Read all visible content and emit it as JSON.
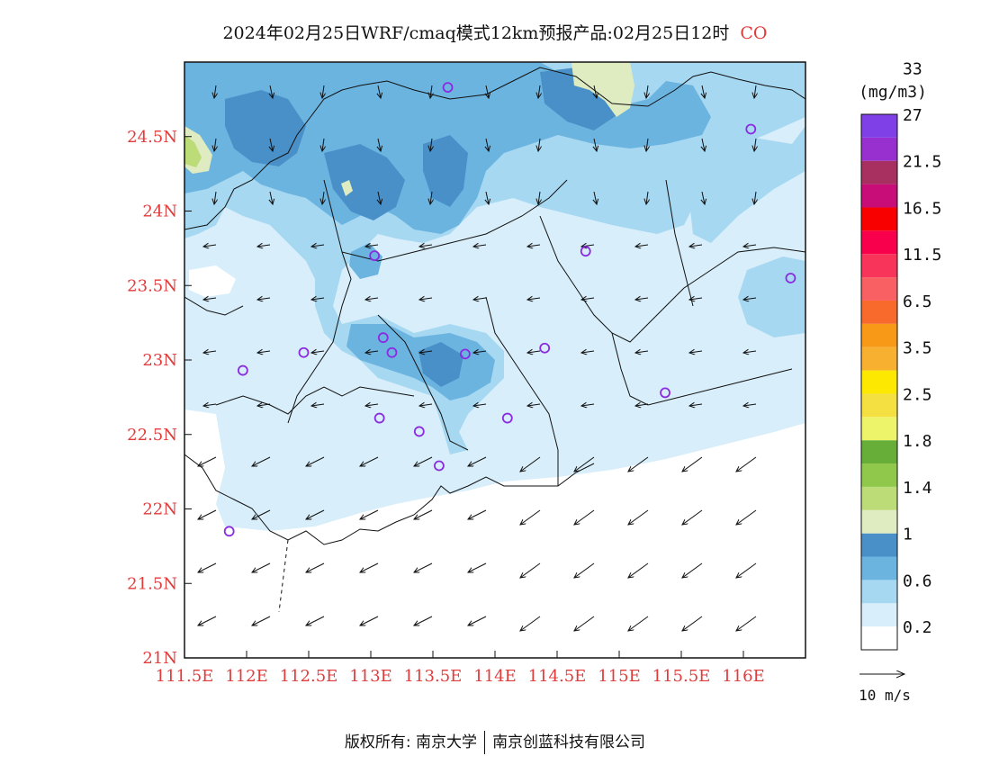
{
  "title": {
    "text": "2024年02月25日WRF/cmaq模式12km预报产品:02月25日12时",
    "pollutant": "CO"
  },
  "map": {
    "lon_range": [
      111.5,
      116.5
    ],
    "lat_range": [
      21.0,
      25.0
    ],
    "x_ticks": [
      "111.5E",
      "112E",
      "112.5E",
      "113E",
      "113.5E",
      "114E",
      "114.5E",
      "115E",
      "115.5E",
      "116E"
    ],
    "y_ticks": [
      "21N",
      "21.5N",
      "22N",
      "22.5N",
      "23N",
      "23.5N",
      "24N",
      "24.5N"
    ],
    "tick_color": "#e23b3b"
  },
  "legend": {
    "unit": "(mg/m3)",
    "colors": [
      "#ffffff",
      "#d8eefa",
      "#a6d8f2",
      "#6cb4e0",
      "#4a90c8",
      "#dfebc0",
      "#bcdc78",
      "#90c84c",
      "#66ae38",
      "#eef46a",
      "#f4e040",
      "#fce800",
      "#f8b030",
      "#f89a18",
      "#f86a2c",
      "#f86064",
      "#f8345a",
      "#f8004c",
      "#f80000",
      "#c80c78",
      "#a83060",
      "#9830d0",
      "#8040e8"
    ],
    "labels": [
      "0.2",
      "0.6",
      "1",
      "1.4",
      "1.8",
      "2.5",
      "3.5",
      "6.5",
      "11.5",
      "16.5",
      "21.5",
      "27",
      "33"
    ],
    "vector_label": "10 m/s"
  },
  "stations": [
    {
      "lon": 111.97,
      "lat": 22.93
    },
    {
      "lon": 112.46,
      "lat": 23.05
    },
    {
      "lon": 113.03,
      "lat": 23.7
    },
    {
      "lon": 113.1,
      "lat": 23.15
    },
    {
      "lon": 113.17,
      "lat": 23.05
    },
    {
      "lon": 113.07,
      "lat": 22.61
    },
    {
      "lon": 113.39,
      "lat": 22.52
    },
    {
      "lon": 113.55,
      "lat": 22.29
    },
    {
      "lon": 113.76,
      "lat": 23.04
    },
    {
      "lon": 113.62,
      "lat": 24.83
    },
    {
      "lon": 114.1,
      "lat": 22.61
    },
    {
      "lon": 114.73,
      "lat": 23.73
    },
    {
      "lon": 114.4,
      "lat": 23.08
    },
    {
      "lon": 115.37,
      "lat": 22.78
    },
    {
      "lon": 116.06,
      "lat": 24.55
    },
    {
      "lon": 116.38,
      "lat": 23.55
    },
    {
      "lon": 111.86,
      "lat": 21.85
    }
  ],
  "footer": {
    "left": "版权所有: 南京大学",
    "right": "南京创蓝科技有限公司"
  }
}
